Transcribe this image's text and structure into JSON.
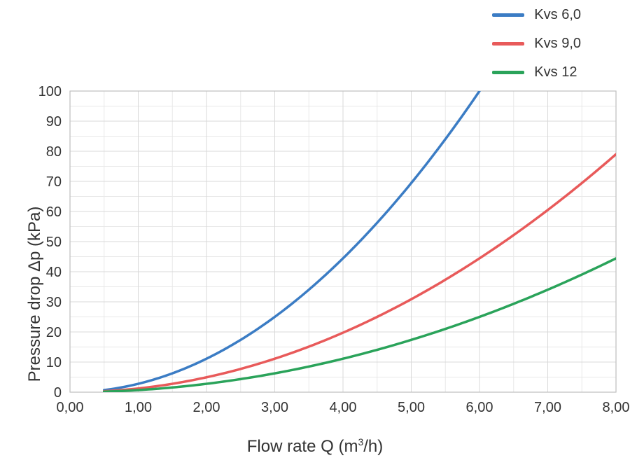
{
  "chart": {
    "type": "line",
    "background_color": "#ffffff",
    "plot_border_color": "#bfbfbf",
    "grid_color": "#d9d9d9",
    "grid_minor_color": "#e8e8e8",
    "axis_text_color": "#333333",
    "x": {
      "label_html": "Flow rate Q (m<sup>3</sup>/h)",
      "label": "Flow rate Q (m³/h)",
      "min": 0,
      "max": 8,
      "major_step": 1,
      "minor_step": 0.5,
      "tick_labels": [
        "0,00",
        "1,00",
        "2,00",
        "3,00",
        "4,00",
        "5,00",
        "6,00",
        "7,00",
        "8,00"
      ],
      "label_fontsize": 24,
      "tick_fontsize": 20
    },
    "y": {
      "label": "Pressure drop Δp (kPa)",
      "min": 0,
      "max": 100,
      "major_step": 10,
      "minor_step": 5,
      "tick_labels": [
        "0",
        "10",
        "20",
        "30",
        "40",
        "50",
        "60",
        "70",
        "80",
        "90",
        "100"
      ],
      "label_fontsize": 24,
      "tick_fontsize": 20
    },
    "line_width": 3.5,
    "series": [
      {
        "name": "Kvs 6,0",
        "color": "#3b7cc4",
        "kvs": 6.0,
        "x_start": 0.5,
        "x_end": 6.0,
        "y_cap": 100
      },
      {
        "name": "Kvs 9,0",
        "color": "#e85a5a",
        "kvs": 9.0,
        "x_start": 0.5,
        "x_end": 8.0,
        "y_cap": 100
      },
      {
        "name": "Kvs 12",
        "color": "#2aa35a",
        "kvs": 12.0,
        "x_start": 0.5,
        "x_end": 8.0,
        "y_cap": 100
      }
    ],
    "legend": {
      "position": "top-right",
      "swatch_width": 46,
      "swatch_height": 5,
      "fontsize": 20
    }
  }
}
